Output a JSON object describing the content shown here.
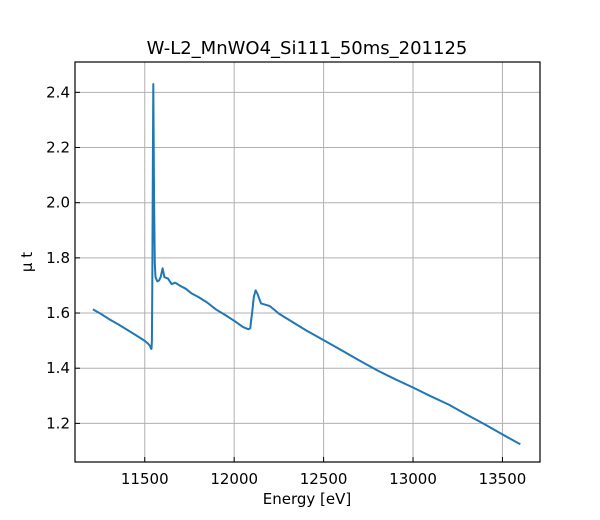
{
  "chart_data": {
    "type": "line",
    "title": "W-L2_MnWO4_Si111_50ms_201125",
    "xlabel": "Energy [eV]",
    "ylabel": "μ t",
    "xlim": [
      11110,
      13710
    ],
    "ylim": [
      1.06,
      2.51
    ],
    "xticks": [
      11500,
      12000,
      12500,
      13000,
      13500
    ],
    "yticks": [
      1.2,
      1.4,
      1.6,
      1.8,
      2.0,
      2.2,
      2.4
    ],
    "xtick_labels": [
      "11500",
      "12000",
      "12500",
      "13000",
      "13500"
    ],
    "ytick_labels": [
      "1.2",
      "1.4",
      "1.6",
      "1.8",
      "2.0",
      "2.2",
      "2.4"
    ],
    "grid": true,
    "tick_direction": "in",
    "series": [
      {
        "color": "#1f77b4",
        "x": [
          11210,
          11260,
          11300,
          11350,
          11400,
          11450,
          11500,
          11520,
          11530,
          11535,
          11538,
          11540,
          11542,
          11545,
          11548,
          11552,
          11556,
          11560,
          11570,
          11580,
          11590,
          11600,
          11610,
          11630,
          11650,
          11670,
          11700,
          11730,
          11760,
          11800,
          11850,
          11900,
          11950,
          12000,
          12050,
          12080,
          12090,
          12095,
          12100,
          12110,
          12120,
          12130,
          12150,
          12200,
          12250,
          12300,
          12400,
          12500,
          12600,
          12700,
          12800,
          12900,
          13000,
          13100,
          13200,
          13300,
          13400,
          13500,
          13600
        ],
        "y": [
          1.613,
          1.595,
          1.578,
          1.56,
          1.54,
          1.52,
          1.499,
          1.488,
          1.48,
          1.471,
          1.47,
          1.5,
          1.7,
          2.1,
          2.43,
          2.0,
          1.78,
          1.73,
          1.715,
          1.718,
          1.732,
          1.762,
          1.73,
          1.725,
          1.705,
          1.71,
          1.698,
          1.688,
          1.672,
          1.658,
          1.638,
          1.612,
          1.593,
          1.572,
          1.549,
          1.541,
          1.545,
          1.575,
          1.6,
          1.658,
          1.682,
          1.67,
          1.635,
          1.625,
          1.598,
          1.578,
          1.538,
          1.502,
          1.465,
          1.428,
          1.392,
          1.36,
          1.33,
          1.298,
          1.268,
          1.232,
          1.197,
          1.16,
          1.124
        ]
      }
    ]
  }
}
